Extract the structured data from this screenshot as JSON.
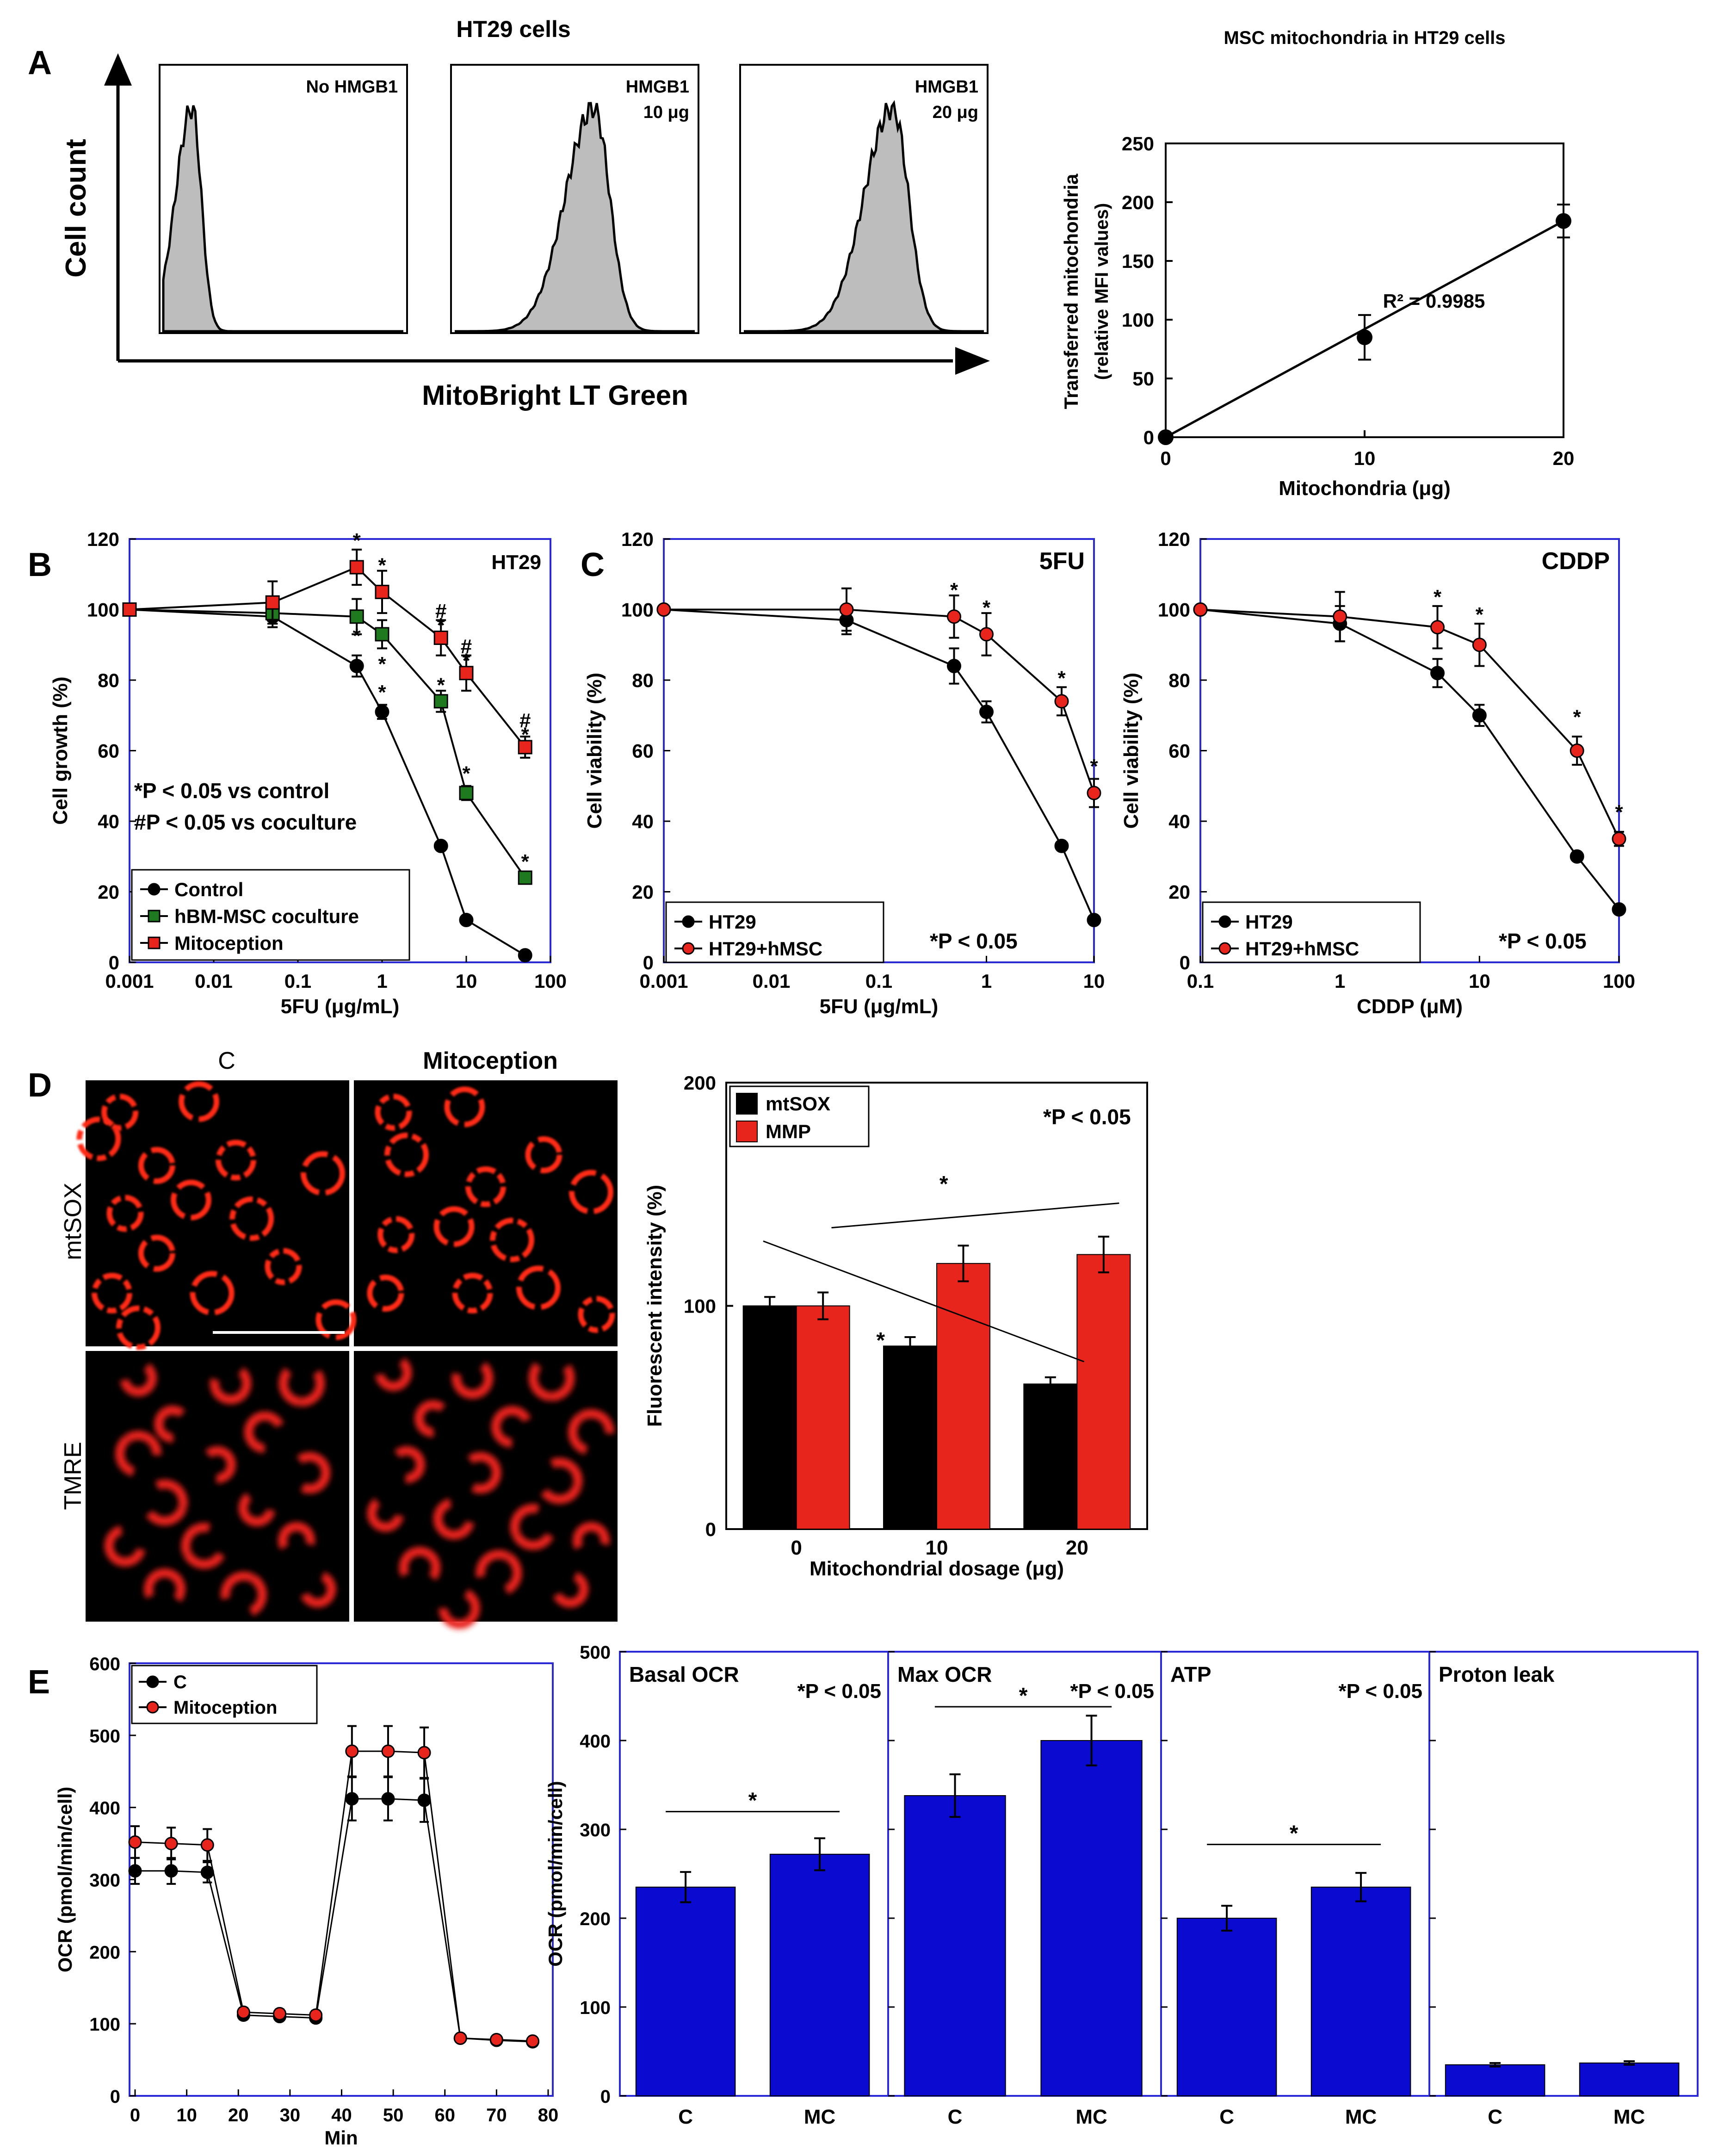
{
  "panels": {
    "A": "A",
    "B": "B",
    "C": "C",
    "D": "D",
    "E": "E"
  },
  "colors": {
    "black": "#000000",
    "green": "#1f7a1f",
    "red": "#e8251c",
    "blue": "#0a0ad0",
    "gray": "#bdbdbd",
    "frame": "#2b2bd6"
  },
  "panelA": {
    "title": "HT29  cells",
    "ylabel": "Cell count",
    "xlabel": "MitoBright LT Green",
    "hist": [
      {
        "label1": "No HMGB1",
        "label2": ""
      },
      {
        "label1": "HMGB1",
        "label2": "10  μg"
      },
      {
        "label1": "HMGB1",
        "label2": "20  μg"
      }
    ]
  },
  "chart_data": [
    {
      "id": "A-right",
      "type": "scatter",
      "title": "MSC mitochondria in HT29 cells",
      "xlabel": "Mitochondria (μg)",
      "ylabel": "Transferred mitochondria",
      "ylabel2": "(relative MFI values)",
      "x": [
        0,
        10,
        20
      ],
      "y": [
        0,
        85,
        184
      ],
      "err": [
        0,
        19,
        14
      ],
      "xlim": [
        0,
        20
      ],
      "ylim": [
        0,
        250
      ],
      "xticks": [
        "0",
        "10",
        "20"
      ],
      "yticks": [
        "0",
        "50",
        "100",
        "150",
        "200",
        "250"
      ],
      "annotation": "R² = 0.9985"
    },
    {
      "id": "B",
      "type": "line",
      "xscale": "log",
      "xlabel": "5FU (μg/mL)",
      "ylabel": "Cell growth (%)",
      "corner": "HT29",
      "xticks": [
        "0.001",
        "0.01",
        "0.1",
        "1",
        "10",
        "100"
      ],
      "yticks": [
        "0",
        "20",
        "40",
        "60",
        "80",
        "100",
        "120"
      ],
      "ylim": [
        0,
        120
      ],
      "notes": [
        "*P < 0.05 vs control",
        "#P < 0.05 vs coculture"
      ],
      "series": [
        {
          "name": "Control",
          "color": "#000000",
          "marker": "circle",
          "x": [
            0.001,
            0.05,
            0.5,
            1,
            5,
            10,
            50
          ],
          "y": [
            100,
            98,
            84,
            71,
            33,
            12,
            2
          ],
          "err": [
            0,
            3,
            3,
            2,
            1,
            1,
            0
          ]
        },
        {
          "name": "hBM-MSC coculture",
          "color": "#1f7a1f",
          "marker": "square",
          "x": [
            0.001,
            0.05,
            0.5,
            1,
            5,
            10,
            50
          ],
          "y": [
            100,
            99,
            98,
            93,
            74,
            48,
            24
          ],
          "err": [
            0,
            3,
            5,
            4,
            3,
            2,
            1
          ]
        },
        {
          "name": "Mitoception",
          "color": "#e8251c",
          "marker": "square",
          "x": [
            0.001,
            0.05,
            0.5,
            1,
            5,
            10,
            50
          ],
          "y": [
            100,
            102,
            112,
            105,
            92,
            82,
            61
          ],
          "err": [
            0,
            6,
            5,
            6,
            5,
            5,
            3
          ]
        }
      ],
      "stars": [
        {
          "x": 0.5,
          "y": 120,
          "t": "*"
        },
        {
          "x": 1,
          "y": 113,
          "t": "*"
        },
        {
          "x": 5,
          "y": 100,
          "t": "#"
        },
        {
          "x": 10,
          "y": 90,
          "t": "#"
        },
        {
          "x": 50,
          "y": 69,
          "t": "#"
        },
        {
          "x": 0.5,
          "y": 93,
          "t": "*"
        },
        {
          "x": 1,
          "y": 85,
          "t": "*"
        },
        {
          "x": 1,
          "y": 77,
          "t": "*"
        },
        {
          "x": 5,
          "y": 96,
          "t": "*"
        },
        {
          "x": 5,
          "y": 79,
          "t": "*"
        },
        {
          "x": 10,
          "y": 86,
          "t": "*"
        },
        {
          "x": 10,
          "y": 54,
          "t": "*"
        },
        {
          "x": 50,
          "y": 65,
          "t": "*"
        },
        {
          "x": 50,
          "y": 29,
          "t": "*"
        }
      ]
    },
    {
      "id": "C-5FU",
      "type": "line",
      "xscale": "log",
      "xlabel": "5FU (μg/mL)",
      "ylabel": "Cell viability (%)",
      "corner": "5FU",
      "note": "*P < 0.05",
      "xticks": [
        "0.001",
        "0.01",
        "0.1",
        "1",
        "10"
      ],
      "yticks": [
        "0",
        "20",
        "40",
        "60",
        "80",
        "100",
        "120"
      ],
      "ylim": [
        0,
        120
      ],
      "series": [
        {
          "name": "HT29",
          "color": "#000000",
          "x": [
            0.001,
            0.05,
            0.5,
            1,
            5,
            10
          ],
          "y": [
            100,
            97,
            84,
            71,
            33,
            12
          ],
          "err": [
            0,
            4,
            5,
            3,
            1,
            1
          ]
        },
        {
          "name": "HT29+hMSC",
          "color": "#e8251c",
          "x": [
            0.001,
            0.05,
            0.5,
            1,
            5,
            10
          ],
          "y": [
            100,
            100,
            98,
            93,
            74,
            48
          ],
          "err": [
            0,
            6,
            6,
            6,
            4,
            4
          ]
        }
      ],
      "stars": [
        {
          "x": 0.5,
          "y": 106,
          "t": "*"
        },
        {
          "x": 1,
          "y": 101,
          "t": "*"
        },
        {
          "x": 5,
          "y": 81,
          "t": "*"
        },
        {
          "x": 10,
          "y": 56,
          "t": "*"
        }
      ]
    },
    {
      "id": "C-CDDP",
      "type": "line",
      "xscale": "log",
      "xlabel": "CDDP (μM)",
      "ylabel": "Cell viability (%)",
      "corner": "CDDP",
      "note": "*P < 0.05",
      "xticks": [
        "0.1",
        "1",
        "10",
        "100"
      ],
      "yticks": [
        "0",
        "20",
        "40",
        "60",
        "80",
        "100",
        "120"
      ],
      "ylim": [
        0,
        120
      ],
      "series": [
        {
          "name": "HT29",
          "color": "#000000",
          "x": [
            0.1,
            1,
            5,
            10,
            50,
            100
          ],
          "y": [
            100,
            96,
            82,
            70,
            30,
            15
          ],
          "err": [
            0,
            5,
            4,
            3,
            1,
            1
          ]
        },
        {
          "name": "HT29+hMSC",
          "color": "#e8251c",
          "x": [
            0.1,
            1,
            5,
            10,
            50,
            100
          ],
          "y": [
            100,
            98,
            95,
            90,
            60,
            35
          ],
          "err": [
            0,
            7,
            6,
            6,
            4,
            2
          ]
        }
      ],
      "stars": [
        {
          "x": 5,
          "y": 104,
          "t": "*"
        },
        {
          "x": 10,
          "y": 99,
          "t": "*"
        },
        {
          "x": 50,
          "y": 70,
          "t": "*"
        },
        {
          "x": 100,
          "y": 43,
          "t": "*"
        }
      ]
    },
    {
      "id": "D",
      "type": "bar",
      "xlabel": "Mitochondrial dosage (μg)",
      "ylabel": "Fluorescent intensity (%)",
      "note": "*P < 0.05",
      "categories": [
        "0",
        "10",
        "20"
      ],
      "yticks": [
        "0",
        "100",
        "200"
      ],
      "ylim": [
        0,
        200
      ],
      "series": [
        {
          "name": "mtSOX",
          "color": "#000000",
          "values": [
            100,
            82,
            65
          ],
          "err": [
            4,
            4,
            3
          ]
        },
        {
          "name": "MMP",
          "color": "#e8251c",
          "values": [
            100,
            119,
            123
          ],
          "err": [
            6,
            8,
            8
          ]
        }
      ]
    },
    {
      "id": "E-left",
      "type": "line",
      "xlabel": "Min",
      "ylabel": "OCR (pmol/min/cell)",
      "xticks": [
        "0",
        "10",
        "20",
        "30",
        "40",
        "50",
        "60",
        "70",
        "80"
      ],
      "yticks": [
        "0",
        "100",
        "200",
        "300",
        "400",
        "500",
        "600"
      ],
      "xlim": [
        0,
        80
      ],
      "ylim": [
        0,
        600
      ],
      "series": [
        {
          "name": "C",
          "color": "#000000",
          "x": [
            0,
            7,
            14,
            21,
            28,
            35,
            42,
            49,
            56,
            63,
            70,
            77
          ],
          "y": [
            312,
            312,
            310,
            112,
            110,
            108,
            412,
            412,
            410,
            80,
            77,
            75
          ],
          "err": [
            18,
            18,
            14,
            6,
            5,
            5,
            30,
            30,
            30,
            4,
            3,
            3
          ]
        },
        {
          "name": "Mitoception",
          "color": "#e8251c",
          "x": [
            0,
            7,
            14,
            21,
            28,
            35,
            42,
            49,
            56,
            63,
            70,
            77
          ],
          "y": [
            352,
            350,
            348,
            116,
            114,
            112,
            478,
            478,
            476,
            80,
            78,
            76
          ],
          "err": [
            22,
            22,
            22,
            6,
            6,
            6,
            35,
            35,
            35,
            4,
            3,
            3
          ]
        }
      ]
    },
    {
      "id": "E-right",
      "type": "bar",
      "ylabel": "OCR (pmol/min/cell)",
      "yticks": [
        "0",
        "100",
        "200",
        "300",
        "400",
        "500"
      ],
      "ylim": [
        0,
        500
      ],
      "color": "#0a0ad0",
      "groups": [
        {
          "title": "Basal OCR",
          "note": "*P < 0.05",
          "categories": [
            "C",
            "MC"
          ],
          "values": [
            235,
            272
          ],
          "err": [
            17,
            18
          ],
          "sig": true
        },
        {
          "title": "Max OCR",
          "note": "*P < 0.05",
          "categories": [
            "C",
            "MC"
          ],
          "values": [
            338,
            400
          ],
          "err": [
            24,
            28
          ],
          "sig": true
        },
        {
          "title": "ATP",
          "note": "*P < 0.05",
          "categories": [
            "C",
            "MC"
          ],
          "values": [
            200,
            235
          ],
          "err": [
            14,
            16
          ],
          "sig": true
        },
        {
          "title": "Proton leak",
          "note": "",
          "categories": [
            "C",
            "MC"
          ],
          "values": [
            35,
            37
          ],
          "err": [
            2,
            2
          ],
          "sig": false
        }
      ]
    }
  ],
  "micro": {
    "colLabels": [
      "C",
      "Mitoception"
    ],
    "rowLabels": [
      "mtSOX",
      "TMRE"
    ]
  }
}
